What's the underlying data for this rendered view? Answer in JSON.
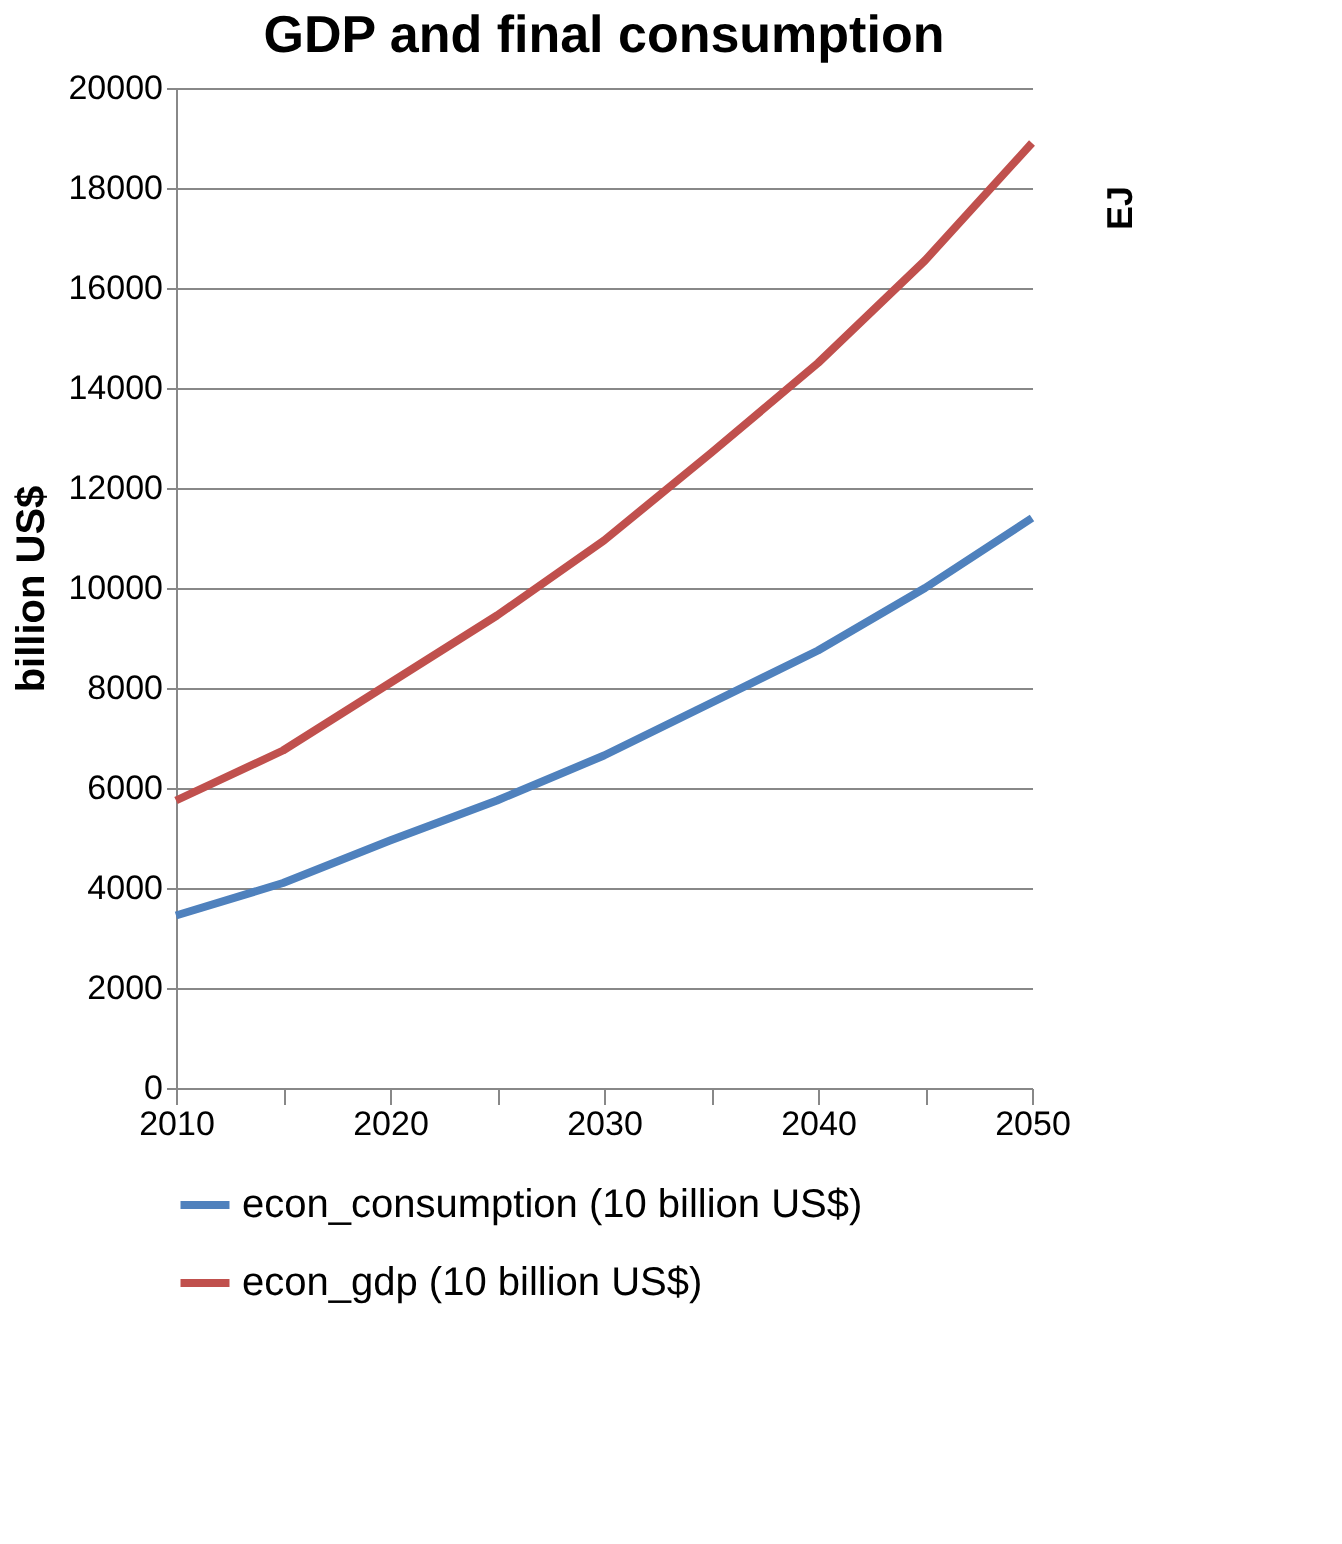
{
  "chart_data": [
    {
      "type": "line",
      "title": "GDP and final consumption",
      "ylabel": "billion US$",
      "x": [
        2010,
        2015,
        2020,
        2025,
        2030,
        2035,
        2040,
        2045,
        2050
      ],
      "series": [
        {
          "name": "econ_consumption (10 billion US$)",
          "color": "#4f81bd",
          "values": [
            3450,
            4100,
            4950,
            5750,
            6650,
            7700,
            8750,
            10000,
            11400
          ]
        },
        {
          "name": "econ_gdp (10 billion US$)",
          "color": "#c0504d",
          "values": [
            5750,
            6750,
            8100,
            9450,
            10950,
            12700,
            14500,
            16550,
            18900
          ]
        }
      ],
      "xlim": [
        2010,
        2050
      ],
      "xticks": [
        2010,
        {
          "value": 2015,
          "label": null
        },
        2020,
        {
          "value": 2025,
          "label": null
        },
        2030,
        {
          "value": 2035,
          "label": null
        },
        2040,
        {
          "value": 2045,
          "label": null
        },
        2050
      ],
      "ylim": [
        0,
        20000
      ],
      "yticks": [
        0,
        2000,
        4000,
        6000,
        8000,
        10000,
        12000,
        14000,
        16000,
        18000,
        20000
      ],
      "grid": "y",
      "legend": "bottom",
      "marker": "none",
      "line_style": "solid"
    },
    {
      "type": "other",
      "ylabel": "EJ"
    }
  ]
}
